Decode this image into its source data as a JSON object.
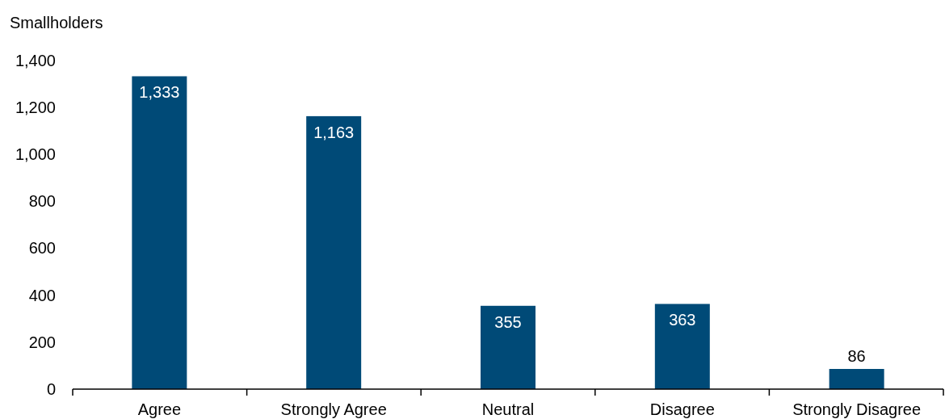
{
  "chart_data": {
    "type": "bar",
    "ylabel": "Smallholders",
    "categories": [
      "Agree",
      "Strongly Agree",
      "Neutral",
      "Disagree",
      "Strongly Disagree"
    ],
    "values": [
      1333,
      1163,
      355,
      363,
      86
    ],
    "color": "#004a77",
    "ylim": [
      0,
      1400
    ],
    "yticks": [
      0,
      {
        "value": 200,
        "label": "200"
      },
      {
        "value": 400,
        "label": "400"
      },
      {
        "value": 600,
        "label": "600"
      },
      {
        "value": 800,
        "label": "800"
      },
      {
        "value": 1000,
        "label": "1,000"
      },
      {
        "value": 1200,
        "label": "1,200"
      },
      {
        "value": 1400,
        "label": "1,400"
      }
    ],
    "value_labels": [
      "1,333",
      "1,163",
      "355",
      "363",
      "86"
    ],
    "grid": false
  }
}
